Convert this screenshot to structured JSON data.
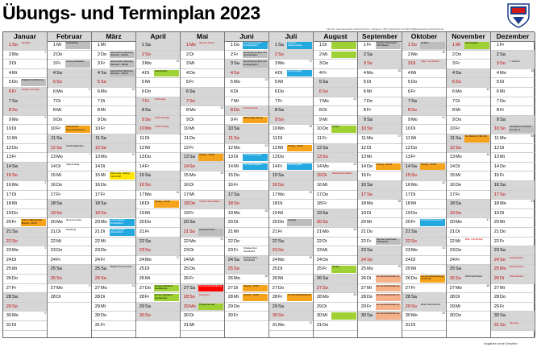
{
  "title": "Übungs- und Terminplan 2023",
  "info": "Internet: www.feuerwehr-petersreuth.de | Instagram: @ff_petersreuth | E-Mail: kdt@feuerwehr-petersreuth.de",
  "footer": "Angaben ohne Gewähr",
  "logo_text": "Feuerwehr Petersreuth",
  "colors": {
    "green": "#9fd134",
    "orange": "#f5a31a",
    "yellow": "#ffe600",
    "blue": "#24a8e0",
    "grey": "#bdbdbd",
    "red": "#ff0000",
    "weekend": "#d6d6d6"
  },
  "months": [
    {
      "name": "Januar",
      "first": 6,
      "days": 31,
      "hol": [
        1,
        6
      ],
      "events": {
        "1": {
          "t": "Neujahr",
          "c": "txtred"
        },
        "5": {
          "t": "Stadtaufl. Eröffnung",
          "c": "grey"
        },
        "6": {
          "t": "Heilige 3 Könige",
          "c": "txtred"
        },
        "20": {
          "t": "JHV im Bürgersaal Beginn: 19:30",
          "c": "orange"
        }
      },
      "kw": {
        "2": "1",
        "9": "2",
        "16": "3",
        "23": "4",
        "30": "5"
      }
    },
    {
      "name": "Februar",
      "first": 2,
      "days": 28,
      "hol": [],
      "events": {
        "1": {
          "t": "Ausbildung",
          "c": "grey"
        },
        "3": {
          "t": "Übung Stadtaufl.",
          "c": "grey"
        },
        "10": {
          "t": "Atemschutz Feuerwehrübung",
          "c": "orange"
        },
        "12": {
          "t": "Faschingskinder",
          "c": "txt"
        },
        "14": {
          "t": "Valentinstag",
          "c": "txt"
        },
        "20": {
          "t": "Rosenmontag",
          "c": "txt"
        },
        "21": {
          "t": "Fasching",
          "c": "txt"
        }
      },
      "kw": {
        "6": "6",
        "13": "7",
        "20": "8",
        "27": "9"
      }
    },
    {
      "name": "März",
      "first": 2,
      "days": 31,
      "hol": [],
      "events": {
        "2": {
          "t": "Atemschutz-Wartung Wertach - Bichel",
          "c": "grey"
        },
        "3": {
          "t": "Atemschutz-Wartung Wertach - Bichel",
          "c": "grey"
        },
        "4": {
          "t": "Atemschutz-Wartung Wertach - Bichel",
          "c": "grey"
        },
        "15": {
          "t": "MS-Lehrg. Übung 19:30 Uhr",
          "c": "yellow"
        },
        "20": {
          "t": "Leistungsabz. Dinkelsbühl",
          "c": "blue"
        },
        "21": {
          "t": "Leistungsabz. Dinkelsbühl",
          "c": "blue"
        },
        "25": {
          "t": "Beginn Sommerzeit",
          "c": "txt"
        }
      },
      "kw": {
        "6": "10",
        "13": "11",
        "20": "12",
        "27": "13"
      }
    },
    {
      "name": "April",
      "first": 5,
      "days": 30,
      "hol": [
        7,
        9,
        10
      ],
      "events": {
        "4": {
          "t": "Atemschutz",
          "c": "green"
        },
        "7": {
          "t": "Karfreitag",
          "c": "txtred"
        },
        "9": {
          "t": "Ostersonntag",
          "c": "txtred"
        },
        "10": {
          "t": "Ostermontag",
          "c": "txtred"
        },
        "18": {
          "t": "Übung - 19:30",
          "c": "orange"
        },
        "27": {
          "t": "Übung Stadtaufl. Gerätehaus",
          "c": "green"
        },
        "28": {
          "t": "Übung Stadtaufl. Gerätehaus",
          "c": "green"
        }
      },
      "kw": {
        "3": "14",
        "10": "15",
        "17": "16",
        "24": "17"
      }
    },
    {
      "name": "Mai",
      "first": 0,
      "days": 31,
      "hol": [
        1,
        18,
        28,
        29
      ],
      "events": {
        "1": {
          "t": "Tag der Arbeit",
          "c": "txtred"
        },
        "13": {
          "t": "Übung - 19:30",
          "c": "orange"
        },
        "18": {
          "t": "Christi Himmelfahrt",
          "c": "txtred"
        },
        "21": {
          "t": "Hochzeit Peter",
          "c": "grey"
        },
        "27": {
          "t": "Gemeinschaftsübung",
          "c": "red"
        },
        "28": {
          "t": "Pfingsten",
          "c": "txtred"
        },
        "29": {
          "t": "Pfingstmontag",
          "c": "green"
        }
      },
      "kw": {
        "1": "18",
        "8": "19",
        "15": "20",
        "22": "21",
        "29": "22"
      }
    },
    {
      "name": "Juni",
      "first": 3,
      "days": 30,
      "hol": [
        8
      ],
      "events": {
        "1": {
          "t": "TH Leistungsabz. Dunkelfingen",
          "c": "blue"
        },
        "2": {
          "t": "Einweihung Haus OH Dunkelfingen",
          "c": "grey"
        },
        "3": {
          "t": "Einweihung Haus OH Dunkelfingen",
          "c": "grey"
        },
        "8": {
          "t": "Fronleichnam",
          "c": "txtred"
        },
        "9": {
          "t": "Aktionstag Übung",
          "c": "orange"
        },
        "13": {
          "t": "TH Leistungsabz.",
          "c": "blue"
        },
        "14": {
          "t": "TH Leistungsabz.",
          "c": "blue"
        },
        "23": {
          "t": "Strassenfest Schellnhof",
          "c": "txt"
        },
        "24": {
          "t": "Strassenfest Schellnhof",
          "c": "txt"
        },
        "27": {
          "t": "Übung - 19:30",
          "c": "orange"
        },
        "28": {
          "t": "Übung - 19:30",
          "c": "orange"
        }
      },
      "kw": {
        "5": "23",
        "12": "24",
        "19": "25",
        "26": "26"
      }
    },
    {
      "name": "Juli",
      "first": 5,
      "days": 31,
      "hol": [],
      "events": {
        "1": {
          "t": "Jugend - Wasserspiele",
          "c": "blue"
        },
        "4": {
          "t": "Leistungsabz.",
          "c": "blue"
        },
        "12": {
          "t": "Übung - 19:30",
          "c": "orange"
        },
        "14": {
          "t": "Leistungsabz.",
          "c": "blue"
        },
        "20": {
          "t": "Ausflug",
          "c": "grey"
        },
        "28": {
          "t": "Gemeinschaftsübung",
          "c": "orange"
        }
      },
      "kw": {
        "3": "27",
        "10": "28",
        "17": "29",
        "24": "30",
        "31": "31"
      }
    },
    {
      "name": "August",
      "first": 1,
      "days": 31,
      "hol": [
        15
      ],
      "events": {
        "1": {
          "t": "",
          "c": "green"
        },
        "2": {
          "t": "",
          "c": "green"
        },
        "10": {
          "t": "Übung",
          "c": "green"
        },
        "15": {
          "t": "Mariä Himmelfahrt",
          "c": "txtred"
        },
        "25": {
          "t": "Übung",
          "c": "green"
        },
        "30": {
          "t": "",
          "c": "green"
        }
      },
      "kw": {
        "7": "32",
        "14": "33",
        "21": "34",
        "28": "35"
      }
    },
    {
      "name": "September",
      "first": 4,
      "days": 30,
      "hol": [],
      "events": {
        "1": {
          "t": "Tag der Feuerwehr Schnaitsee",
          "c": "grey"
        },
        "14": {
          "t": "Übung - 19:30",
          "c": "orange"
        },
        "22": {
          "t": "Tag der Feuerwehr Schnaitsee",
          "c": "grey"
        },
        "26": {
          "t": "Gemeinschaftsübung",
          "c": "peach"
        },
        "27": {
          "t": "Gemeinschaftsübung",
          "c": "peach"
        },
        "28": {
          "t": "Gemeinschaftsübung",
          "c": "peach"
        },
        "29": {
          "t": "Gemeinschaftsübung",
          "c": "peach"
        },
        "30": {
          "t": "Gemeinschaftsübung",
          "c": "peach"
        }
      },
      "kw": {
        "4": "36",
        "11": "37",
        "18": "38",
        "25": "39"
      }
    },
    {
      "name": "Oktober",
      "first": 6,
      "days": 31,
      "hol": [
        3
      ],
      "events": {
        "1": {
          "t": "Hoffest",
          "c": "grey"
        },
        "3": {
          "t": "Tag d. dt. Einheit",
          "c": "txtred"
        },
        "14": {
          "t": "Übung - 19:30",
          "c": "orange"
        },
        "20": {
          "t": "Herbstversammlung",
          "c": "blue"
        },
        "26": {
          "t": "Gemeinschaftsübung 19:30 Uhr",
          "c": "orange"
        },
        "29": {
          "t": "Ende Sommerzeit",
          "c": "txt"
        }
      },
      "kw": {
        "2": "40",
        "9": "41",
        "16": "42",
        "23": "43",
        "30": "44"
      }
    },
    {
      "name": "November",
      "first": 2,
      "days": 30,
      "hol": [
        1
      ],
      "events": {
        "1": {
          "t": "Allerheiligen",
          "c": "green"
        },
        "11": {
          "t": "St. Martin 17:00 Uhr",
          "c": "orange"
        },
        "22": {
          "t": "Buß- und Bettag",
          "c": "txtred"
        },
        "26": {
          "t": "Weihnachtsfeier",
          "c": "txt"
        }
      },
      "kw": {
        "6": "45",
        "13": "46",
        "20": "47",
        "27": "48"
      }
    },
    {
      "name": "Dezember",
      "first": 4,
      "days": 31,
      "hol": [
        24,
        25,
        26,
        31
      ],
      "events": {
        "3": {
          "t": "1. Advent",
          "c": "txt"
        },
        "10": {
          "t": "Christbaum Verkauf vor dem 3",
          "c": "grey"
        },
        "24": {
          "t": "Heilig Abend",
          "c": "txtred"
        },
        "25": {
          "t": "Weihnachten",
          "c": "txtred"
        },
        "26": {
          "t": "Weihnachten",
          "c": "txtred"
        },
        "31": {
          "t": "Silvester",
          "c": "txtred"
        }
      },
      "kw": {
        "4": "49",
        "11": "50",
        "18": "51",
        "25": "52"
      }
    }
  ],
  "weekdays": [
    "Mo",
    "Di",
    "Mi",
    "Do",
    "Fr",
    "Sa",
    "So"
  ]
}
